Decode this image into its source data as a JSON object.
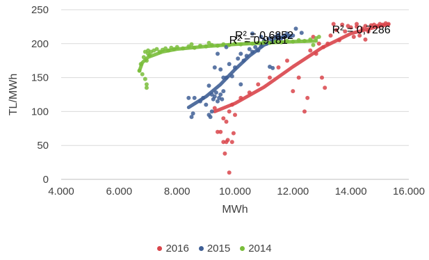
{
  "colors": {
    "2016": "#d9454b",
    "2015": "#3f5f95",
    "2014": "#79bd3a",
    "grid": "#d9d9d9",
    "axis": "#bfbfbf",
    "text": "#404040"
  },
  "chart_data": {
    "type": "scatter",
    "xlabel": "MWh",
    "ylabel": "TL/MWh",
    "xlim": [
      4000,
      16000
    ],
    "ylim": [
      0,
      250
    ],
    "x_ticks": [
      4000,
      6000,
      8000,
      10000,
      12000,
      14000,
      16000
    ],
    "x_tick_labels": [
      "4.000",
      "6.000",
      "8.000",
      "10.000",
      "12.000",
      "14.000",
      "16.000"
    ],
    "y_ticks": [
      0,
      50,
      100,
      150,
      200,
      250
    ],
    "y_tick_labels": [
      "0",
      "50",
      "100",
      "150",
      "200",
      "250"
    ],
    "grid": "horizontal",
    "legend_position": "bottom",
    "r2_labels": [
      {
        "series": "2016",
        "text": "R² = 0,7286",
        "x": 13350,
        "y": 215
      },
      {
        "series": "2015",
        "text": "R² = 0,6852",
        "x": 10000,
        "y": 207
      },
      {
        "series": "2014",
        "text": "R² = 0,9181",
        "x": 9800,
        "y": 200
      }
    ],
    "series": [
      {
        "name": "2016",
        "color": "#d9454b",
        "trendline": [
          [
            9300,
            100
          ],
          [
            10000,
            112
          ],
          [
            11000,
            136
          ],
          [
            12000,
            166
          ],
          [
            13000,
            194
          ],
          [
            14000,
            215
          ],
          [
            15000,
            226
          ],
          [
            15300,
            228
          ]
        ],
        "points": [
          [
            9300,
            105
          ],
          [
            9400,
            70
          ],
          [
            9500,
            70
          ],
          [
            9600,
            55
          ],
          [
            9650,
            38
          ],
          [
            9700,
            55
          ],
          [
            9750,
            58
          ],
          [
            9800,
            10
          ],
          [
            9900,
            55
          ],
          [
            9950,
            68
          ],
          [
            9700,
            85
          ],
          [
            9800,
            100
          ],
          [
            9900,
            110
          ],
          [
            10000,
            95
          ],
          [
            9600,
            90
          ],
          [
            10200,
            120
          ],
          [
            10500,
            128
          ],
          [
            10800,
            140
          ],
          [
            11200,
            150
          ],
          [
            11500,
            165
          ],
          [
            11800,
            175
          ],
          [
            12000,
            130
          ],
          [
            12200,
            150
          ],
          [
            12400,
            100
          ],
          [
            12500,
            120
          ],
          [
            12600,
            190
          ],
          [
            12800,
            185
          ],
          [
            13000,
            150
          ],
          [
            13100,
            135
          ],
          [
            13200,
            200
          ],
          [
            13300,
            212
          ],
          [
            13500,
            220
          ],
          [
            13600,
            205
          ],
          [
            13800,
            218
          ],
          [
            14000,
            224
          ],
          [
            14100,
            210
          ],
          [
            14200,
            225
          ],
          [
            14300,
            212
          ],
          [
            14400,
            222
          ],
          [
            14500,
            226
          ],
          [
            14600,
            218
          ],
          [
            14700,
            227
          ],
          [
            14800,
            228
          ],
          [
            14900,
            226
          ],
          [
            15000,
            229
          ],
          [
            15100,
            228
          ],
          [
            15200,
            230
          ],
          [
            15300,
            229
          ],
          [
            13700,
            228
          ],
          [
            13900,
            226
          ],
          [
            14500,
            206
          ],
          [
            12900,
            200
          ],
          [
            13050,
            195
          ],
          [
            12700,
            210
          ],
          [
            13400,
            229
          ],
          [
            14200,
            229
          ]
        ]
      },
      {
        "name": "2015",
        "color": "#3f5f95",
        "trendline": [
          [
            8400,
            106
          ],
          [
            9000,
            122
          ],
          [
            9500,
            140
          ],
          [
            10000,
            162
          ],
          [
            10500,
            182
          ],
          [
            11000,
            198
          ],
          [
            11500,
            208
          ],
          [
            11900,
            212
          ]
        ],
        "points": [
          [
            8400,
            120
          ],
          [
            8500,
            92
          ],
          [
            8550,
            97
          ],
          [
            8600,
            120
          ],
          [
            8800,
            115
          ],
          [
            8900,
            120
          ],
          [
            9000,
            110
          ],
          [
            9100,
            95
          ],
          [
            9150,
            92
          ],
          [
            9200,
            100
          ],
          [
            9200,
            125
          ],
          [
            9250,
            118
          ],
          [
            9300,
            122
          ],
          [
            9350,
            128
          ],
          [
            9400,
            115
          ],
          [
            9450,
            120
          ],
          [
            9500,
            125
          ],
          [
            9550,
            118
          ],
          [
            9600,
            130
          ],
          [
            9300,
            165
          ],
          [
            9400,
            185
          ],
          [
            9500,
            162
          ],
          [
            9600,
            150
          ],
          [
            9700,
            150
          ],
          [
            9800,
            170
          ],
          [
            9900,
            152
          ],
          [
            10000,
            165
          ],
          [
            10100,
            178
          ],
          [
            10200,
            185
          ],
          [
            10300,
            175
          ],
          [
            10400,
            182
          ],
          [
            10500,
            192
          ],
          [
            10600,
            188
          ],
          [
            10700,
            195
          ],
          [
            10800,
            190
          ],
          [
            10900,
            196
          ],
          [
            11000,
            205
          ],
          [
            11100,
            200
          ],
          [
            11200,
            208
          ],
          [
            11300,
            203
          ],
          [
            11400,
            210
          ],
          [
            11500,
            213
          ],
          [
            11600,
            208
          ],
          [
            11700,
            212
          ],
          [
            11800,
            215
          ],
          [
            11900,
            210
          ],
          [
            12000,
            212
          ],
          [
            11200,
            166
          ],
          [
            11300,
            164
          ],
          [
            10200,
            140
          ],
          [
            9100,
            138
          ],
          [
            9700,
            195
          ],
          [
            10600,
            215
          ],
          [
            12100,
            222
          ],
          [
            12300,
            216
          ],
          [
            10900,
            210
          ]
        ]
      },
      {
        "name": "2014",
        "color": "#79bd3a",
        "trendline": [
          [
            6700,
            160
          ],
          [
            6800,
            172
          ],
          [
            7000,
            180
          ],
          [
            7500,
            188
          ],
          [
            8000,
            192
          ],
          [
            9000,
            196
          ],
          [
            10000,
            199
          ],
          [
            11000,
            201
          ],
          [
            12000,
            203
          ],
          [
            12800,
            204
          ]
        ],
        "points": [
          [
            6700,
            160
          ],
          [
            6750,
            170
          ],
          [
            6800,
            155
          ],
          [
            6850,
            180
          ],
          [
            6900,
            148
          ],
          [
            6950,
            140
          ],
          [
            6950,
            135
          ],
          [
            6900,
            188
          ],
          [
            7000,
            185
          ],
          [
            7000,
            190
          ],
          [
            7100,
            188
          ],
          [
            7200,
            190
          ],
          [
            7300,
            192
          ],
          [
            7400,
            188
          ],
          [
            7500,
            191
          ],
          [
            7600,
            193
          ],
          [
            7700,
            190
          ],
          [
            7800,
            194
          ],
          [
            7900,
            192
          ],
          [
            8000,
            195
          ],
          [
            8200,
            193
          ],
          [
            8400,
            196
          ],
          [
            8600,
            194
          ],
          [
            8800,
            197
          ],
          [
            9000,
            196
          ],
          [
            9200,
            198
          ],
          [
            9400,
            197
          ],
          [
            9600,
            199
          ],
          [
            9800,
            198
          ],
          [
            10000,
            200
          ],
          [
            10200,
            199
          ],
          [
            10400,
            201
          ],
          [
            10600,
            200
          ],
          [
            10800,
            201
          ],
          [
            11000,
            202
          ],
          [
            11200,
            201
          ],
          [
            11400,
            203
          ],
          [
            11600,
            202
          ],
          [
            11800,
            204
          ],
          [
            12000,
            203
          ],
          [
            12200,
            205
          ],
          [
            12400,
            204
          ],
          [
            12600,
            206
          ],
          [
            12800,
            208
          ],
          [
            12900,
            210
          ],
          [
            12700,
            198
          ],
          [
            8500,
            199
          ],
          [
            9100,
            201
          ],
          [
            6950,
            175
          ],
          [
            7050,
            183
          ]
        ]
      }
    ]
  }
}
